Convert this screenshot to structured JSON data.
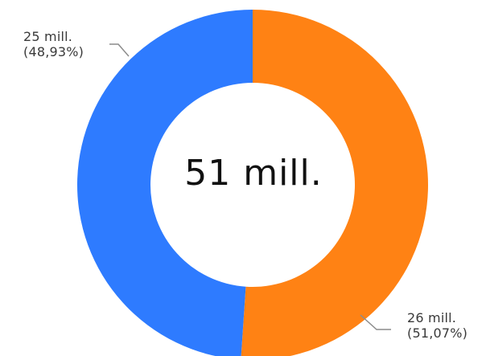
{
  "chart_data": {
    "type": "donut",
    "series": [
      {
        "name": "",
        "value": 26,
        "percent": 51.07,
        "color": "#FF8214",
        "label_value": "26 mill.",
        "label_percent": "(51,07%)"
      },
      {
        "name": "",
        "value": 25,
        "percent": 48.93,
        "color": "#2E7BFF",
        "label_value": "25 mill.",
        "label_percent": "(48,93%)"
      }
    ],
    "total_label": "51 mill.",
    "start_angle_deg": 0,
    "direction": "clockwise"
  }
}
